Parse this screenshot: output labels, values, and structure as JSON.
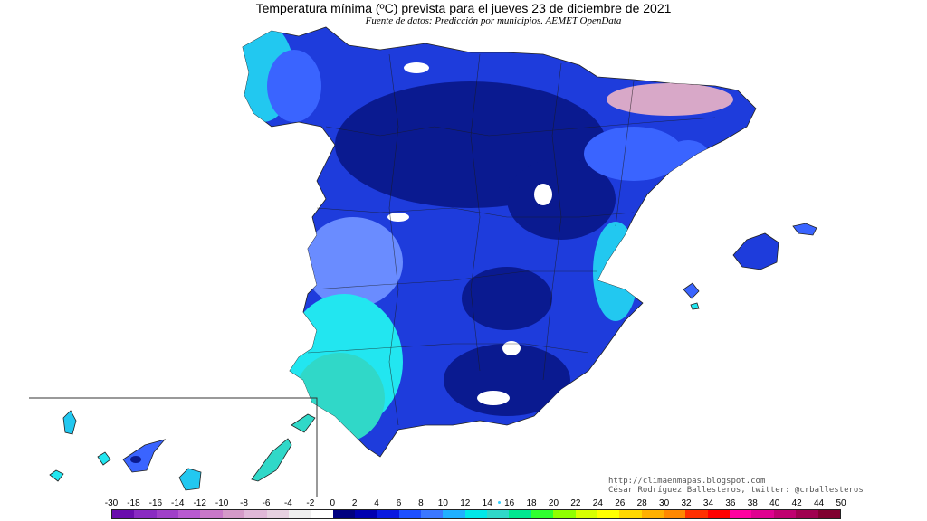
{
  "header": {
    "title": "Temperatura mínima (ºC) prevista para el jueves 23 de diciembre de 2021",
    "subtitle": "Fuente de datos: Predicción por municipios. AEMET OpenData"
  },
  "credits": {
    "website": "http://climaenmapas.blogspot.com",
    "author": "César Rodríguez Ballesteros, twitter: @crballesteros"
  },
  "legend": {
    "labels": [
      "-30",
      "-18",
      "-16",
      "-14",
      "-12",
      "-10",
      "-8",
      "-6",
      "-4",
      "-2",
      "0",
      "2",
      "4",
      "6",
      "8",
      "10",
      "12",
      "14",
      "16",
      "18",
      "20",
      "22",
      "24",
      "26",
      "28",
      "30",
      "32",
      "34",
      "36",
      "38",
      "40",
      "42",
      "44",
      "50"
    ],
    "colors": [
      "#6a0dad",
      "#8a2bc2",
      "#a040c8",
      "#b85ad0",
      "#c878c8",
      "#d49ac8",
      "#e0b8d8",
      "#e6d0e0",
      "#eeeeee",
      "#ffffff",
      "#000080",
      "#0000b0",
      "#0a1ae0",
      "#1e50ff",
      "#3c78ff",
      "#20b0ff",
      "#00e8e8",
      "#30d8c8",
      "#00e890",
      "#30ff30",
      "#90ff00",
      "#d8ff00",
      "#ffff00",
      "#ffd800",
      "#ffb000",
      "#ff8800",
      "#ff3000",
      "#ff0000",
      "#ff00a0",
      "#e00090",
      "#c00070",
      "#a00050",
      "#800030"
    ]
  },
  "map_colors": {
    "very_cold": "#0a1a90",
    "cold": "#1e3cdc",
    "mid": "#3a64ff",
    "light": "#6a8cff",
    "cyan": "#22e6f0",
    "teal": "#30d8c8",
    "snow": "#ffffff",
    "pyrenees": "#d8a8c8"
  }
}
